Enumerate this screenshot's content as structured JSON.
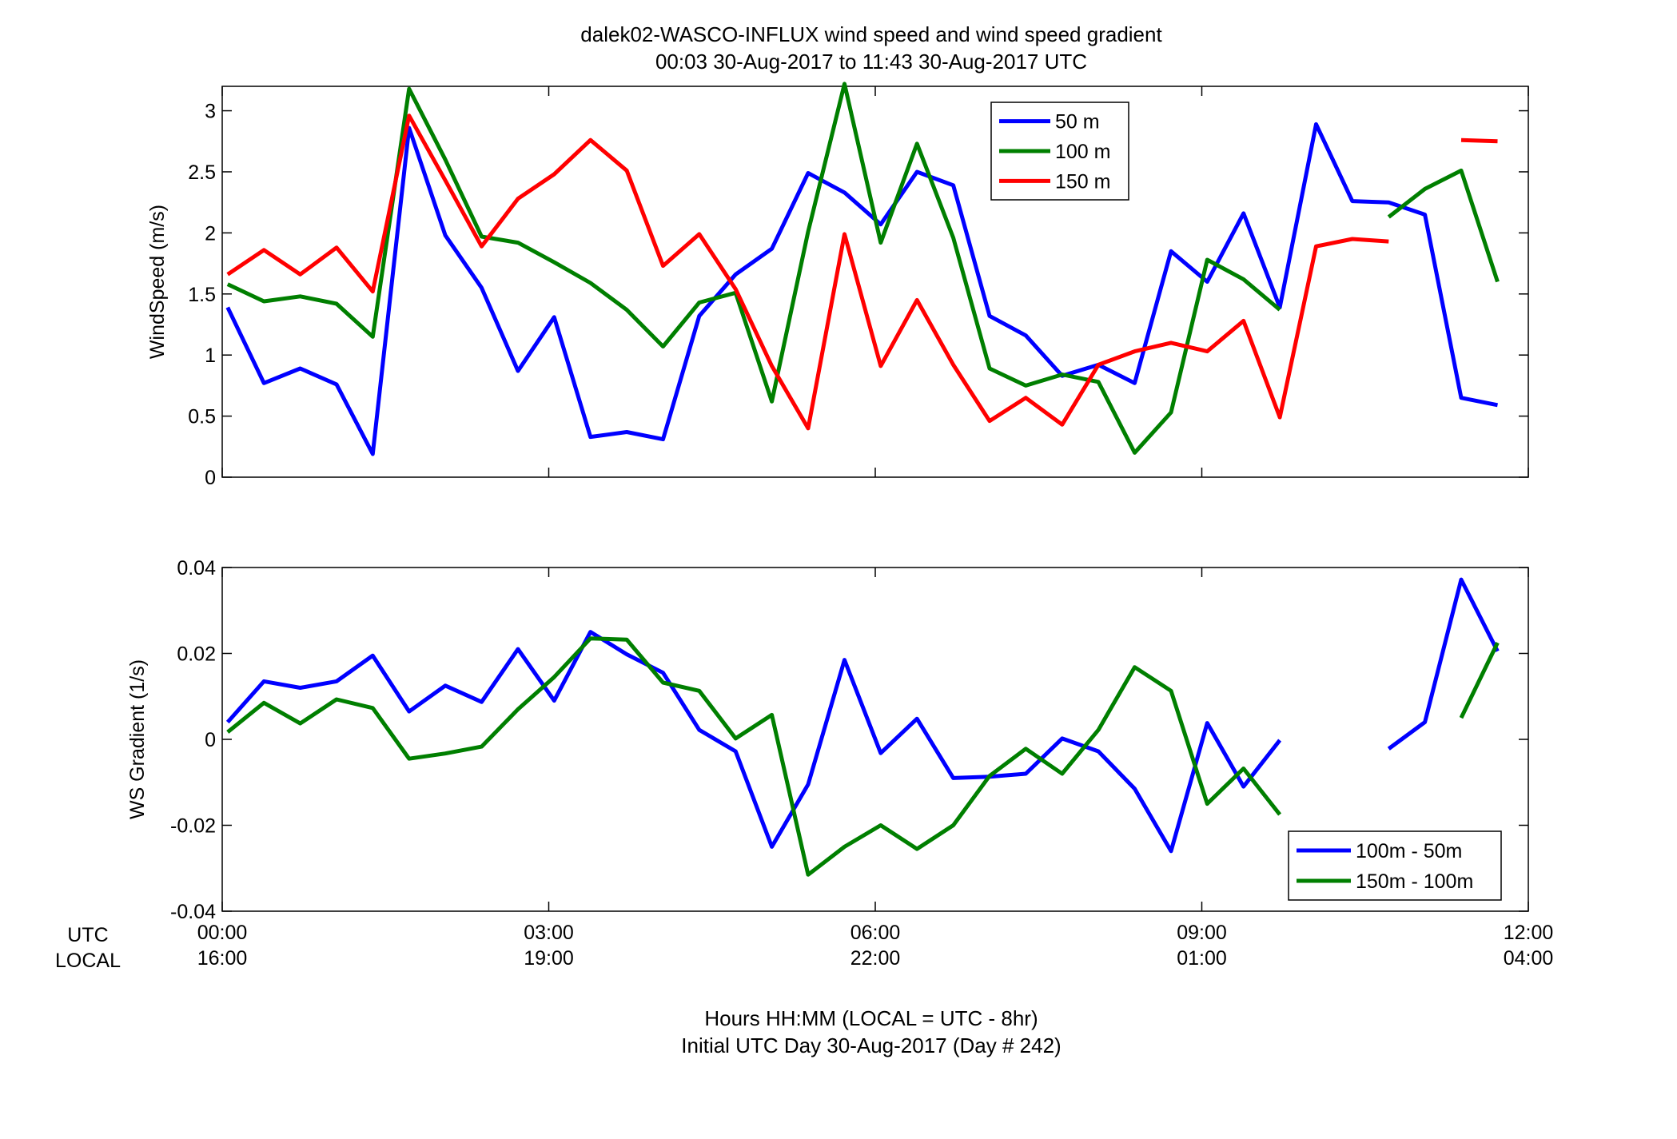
{
  "title_line1": "dalek02-WASCO-INFLUX  wind speed and wind speed gradient",
  "title_line2": "00:03 30-Aug-2017 to 11:43 30-Aug-2017  UTC",
  "x_row_labels": {
    "utc": "UTC",
    "local": "LOCAL"
  },
  "x_ticks_utc": [
    "00:00",
    "03:00",
    "06:00",
    "09:00",
    "12:00"
  ],
  "x_ticks_local": [
    "16:00",
    "19:00",
    "22:00",
    "01:00",
    "04:00"
  ],
  "footer_line1": "Hours HH:MM  (LOCAL = UTC - 8hr)",
  "footer_line2": "Initial UTC Day 30-Aug-2017 (Day # 242)",
  "chart_data": [
    {
      "type": "line",
      "title": "",
      "xlabel": "",
      "ylabel": "WindSpeed (m/s)",
      "xlim": [
        0,
        12
      ],
      "ylim": [
        0,
        3.2
      ],
      "x_tick_values": [
        0,
        3,
        6,
        9,
        12
      ],
      "y_ticks": [
        0,
        0.5,
        1,
        1.5,
        2,
        2.5,
        3
      ],
      "y_tick_labels": [
        "0",
        "0.5",
        "1",
        "1.5",
        "2",
        "2.5",
        "3"
      ],
      "grid": false,
      "legend_position": "top-right",
      "x": [
        0.05,
        0.383,
        0.717,
        1.05,
        1.383,
        1.717,
        2.05,
        2.383,
        2.717,
        3.05,
        3.383,
        3.717,
        4.05,
        4.383,
        4.717,
        5.05,
        5.383,
        5.717,
        6.05,
        6.383,
        6.717,
        7.05,
        7.383,
        7.717,
        8.05,
        8.383,
        8.717,
        9.05,
        9.383,
        9.717,
        10.05,
        10.383,
        10.717,
        11.05,
        11.383,
        11.717
      ],
      "series": [
        {
          "name": "50 m",
          "color": "#0000ff",
          "values": [
            1.39,
            0.77,
            0.89,
            0.76,
            0.19,
            2.86,
            1.98,
            1.55,
            0.87,
            1.31,
            0.33,
            0.37,
            0.31,
            1.32,
            1.66,
            1.87,
            2.49,
            2.33,
            2.07,
            2.5,
            2.39,
            1.32,
            1.16,
            0.83,
            0.92,
            0.77,
            1.85,
            1.6,
            2.16,
            1.39,
            2.89,
            2.26,
            2.25,
            2.15,
            0.65,
            0.59
          ]
        },
        {
          "name": "100 m",
          "color": "#007f00",
          "values": [
            1.58,
            1.44,
            1.48,
            1.42,
            1.15,
            3.18,
            2.6,
            1.97,
            1.92,
            1.76,
            1.59,
            1.37,
            1.07,
            1.43,
            1.51,
            0.62,
            2.01,
            3.22,
            1.92,
            2.73,
            1.96,
            0.89,
            0.75,
            0.84,
            0.78,
            0.2,
            0.53,
            1.78,
            1.62,
            1.37,
            null,
            null,
            2.13,
            2.36,
            2.51,
            1.6
          ]
        },
        {
          "name": "150 m",
          "color": "#ff0000",
          "values": [
            1.66,
            1.86,
            1.66,
            1.88,
            1.52,
            2.96,
            2.43,
            1.89,
            2.28,
            2.48,
            2.76,
            2.51,
            1.73,
            1.99,
            1.54,
            0.91,
            0.4,
            1.99,
            0.91,
            1.45,
            0.92,
            0.46,
            0.65,
            0.43,
            0.92,
            1.03,
            1.1,
            1.03,
            1.28,
            0.49,
            1.89,
            1.95,
            1.93,
            null,
            2.76,
            2.75
          ]
        }
      ]
    },
    {
      "type": "line",
      "title": "",
      "xlabel": "",
      "ylabel": "WS Gradient (1/s)",
      "xlim": [
        0,
        12
      ],
      "ylim": [
        -0.04,
        0.04
      ],
      "x_tick_values": [
        0,
        3,
        6,
        9,
        12
      ],
      "y_ticks": [
        -0.04,
        -0.02,
        0,
        0.02,
        0.04
      ],
      "y_tick_labels": [
        "-0.04",
        "-0.02",
        "0",
        "0.02",
        "0.04"
      ],
      "grid": false,
      "legend_position": "bottom-right",
      "x": [
        0.05,
        0.383,
        0.717,
        1.05,
        1.383,
        1.717,
        2.05,
        2.383,
        2.717,
        3.05,
        3.383,
        3.717,
        4.05,
        4.383,
        4.717,
        5.05,
        5.383,
        5.717,
        6.05,
        6.383,
        6.717,
        7.05,
        7.383,
        7.717,
        8.05,
        8.383,
        8.717,
        9.05,
        9.383,
        9.717,
        10.05,
        10.383,
        10.717,
        11.05,
        11.383,
        11.717
      ],
      "series": [
        {
          "name": "100m - 50m",
          "color": "#0000ff",
          "values": [
            0.004,
            0.0135,
            0.012,
            0.0135,
            0.0195,
            0.0065,
            0.0125,
            0.0087,
            0.021,
            0.009,
            0.025,
            0.0198,
            0.0155,
            0.0022,
            -0.0028,
            -0.025,
            -0.0105,
            0.0185,
            -0.0032,
            0.0048,
            -0.009,
            -0.0087,
            -0.008,
            0.0002,
            -0.0028,
            -0.0115,
            -0.026,
            0.0038,
            -0.011,
            -0.0002,
            null,
            null,
            -0.0022,
            0.004,
            0.0372,
            0.0205
          ]
        },
        {
          "name": "150m - 100m",
          "color": "#007f00",
          "values": [
            0.0017,
            0.0085,
            0.0037,
            0.0093,
            0.0073,
            -0.0045,
            -0.0033,
            -0.0017,
            0.007,
            0.0145,
            0.0235,
            0.0232,
            0.0132,
            0.0113,
            0.0002,
            0.0057,
            -0.0315,
            -0.025,
            -0.02,
            -0.0255,
            -0.02,
            -0.0085,
            -0.0022,
            -0.008,
            0.0022,
            0.0168,
            0.0113,
            -0.015,
            -0.0068,
            -0.0175,
            null,
            null,
            null,
            null,
            0.005,
            0.0225
          ]
        }
      ]
    }
  ]
}
